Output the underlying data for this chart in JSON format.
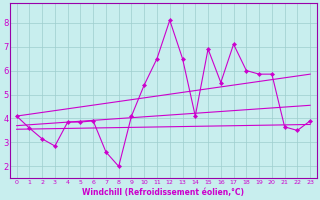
{
  "xlabel": "Windchill (Refroidissement éolien,°C)",
  "bg_color": "#c8eeee",
  "grid_color": "#9ecece",
  "line_color": "#cc00cc",
  "spine_color": "#9900aa",
  "xlim": [
    -0.5,
    23.5
  ],
  "ylim": [
    1.5,
    8.8
  ],
  "yticks": [
    2,
    3,
    4,
    5,
    6,
    7,
    8
  ],
  "xticks": [
    0,
    1,
    2,
    3,
    4,
    5,
    6,
    7,
    8,
    9,
    10,
    11,
    12,
    13,
    14,
    15,
    16,
    17,
    18,
    19,
    20,
    21,
    22,
    23
  ],
  "main_x": [
    0,
    1,
    2,
    3,
    4,
    5,
    6,
    7,
    8,
    9,
    10,
    11,
    12,
    13,
    14,
    15,
    16,
    17,
    18,
    19,
    20,
    21,
    22,
    23
  ],
  "main_y": [
    4.1,
    3.6,
    3.15,
    2.85,
    3.85,
    3.85,
    3.9,
    2.6,
    2.0,
    4.1,
    5.4,
    6.5,
    8.1,
    6.5,
    4.1,
    6.9,
    5.5,
    7.1,
    6.0,
    5.85,
    5.85,
    3.65,
    3.5,
    3.9
  ],
  "trend1_x": [
    0,
    23
  ],
  "trend1_y": [
    3.55,
    3.75
  ],
  "trend2_x": [
    0,
    23
  ],
  "trend2_y": [
    3.7,
    4.55
  ],
  "trend3_x": [
    0,
    23
  ],
  "trend3_y": [
    4.1,
    5.85
  ],
  "xlabel_fontsize": 5.5,
  "tick_fontsize_x": 4.5,
  "tick_fontsize_y": 6.0,
  "linewidth": 0.8,
  "markersize": 2.2
}
